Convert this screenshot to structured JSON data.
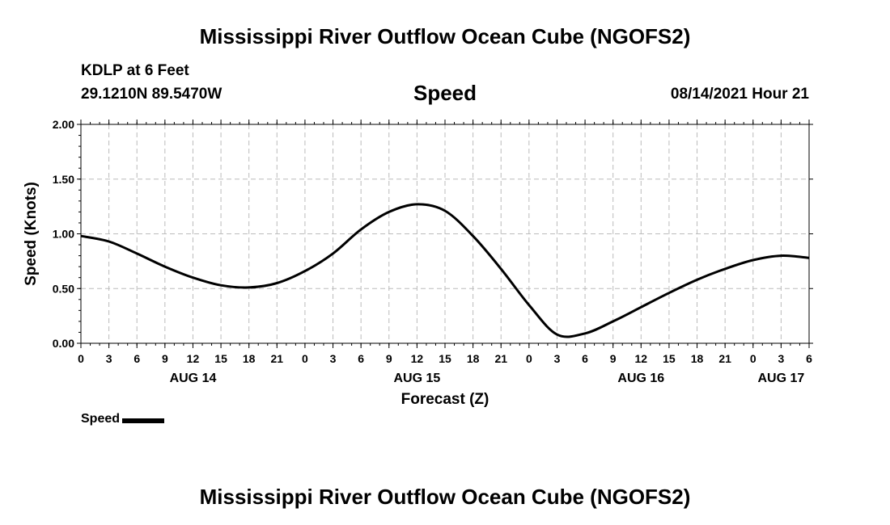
{
  "header": {
    "title": "Mississippi River Outflow Ocean Cube (NGOFS2)",
    "station": "KDLP at 6 Feet",
    "coords": "29.1210N  89.5470W",
    "parameter": "Speed",
    "datetime": "08/14/2021 Hour 21"
  },
  "footer": {
    "title": "Mississippi River Outflow Ocean Cube (NGOFS2)"
  },
  "legend": {
    "label": "Speed"
  },
  "colors": {
    "line": "#000000",
    "grid": "#bbbbbb",
    "axis": "#000000"
  },
  "chart_data": {
    "type": "line",
    "title": "Speed",
    "xlabel": "Forecast (Z)",
    "ylabel": "Speed (Knots)",
    "ylim": [
      0,
      2
    ],
    "yticks": [
      "0.00",
      "0.50",
      "1.00",
      "1.50",
      "2.00"
    ],
    "xlim_hours": [
      0,
      78
    ],
    "xtick_labels": [
      "0",
      "3",
      "6",
      "9",
      "12",
      "15",
      "18",
      "21",
      "0",
      "3",
      "6",
      "9",
      "12",
      "15",
      "18",
      "21",
      "0",
      "3",
      "6",
      "9",
      "12",
      "15",
      "18",
      "21",
      "0",
      "3",
      "6"
    ],
    "day_labels": [
      {
        "label": "AUG 14",
        "hour": 12
      },
      {
        "label": "AUG 15",
        "hour": 36
      },
      {
        "label": "AUG 16",
        "hour": 60
      },
      {
        "label": "AUG 17",
        "hour": 75
      }
    ],
    "grid": true,
    "series": [
      {
        "name": "Speed",
        "x_hours": [
          0,
          3,
          6,
          9,
          12,
          15,
          18,
          21,
          24,
          27,
          30,
          33,
          36,
          39,
          42,
          45,
          48,
          51,
          54,
          57,
          60,
          63,
          66,
          69,
          72,
          75,
          78
        ],
        "values": [
          0.98,
          0.93,
          0.82,
          0.7,
          0.6,
          0.53,
          0.51,
          0.55,
          0.66,
          0.82,
          1.04,
          1.2,
          1.27,
          1.21,
          0.98,
          0.68,
          0.35,
          0.08,
          0.09,
          0.2,
          0.33,
          0.46,
          0.58,
          0.68,
          0.76,
          0.8,
          0.78
        ]
      }
    ]
  }
}
